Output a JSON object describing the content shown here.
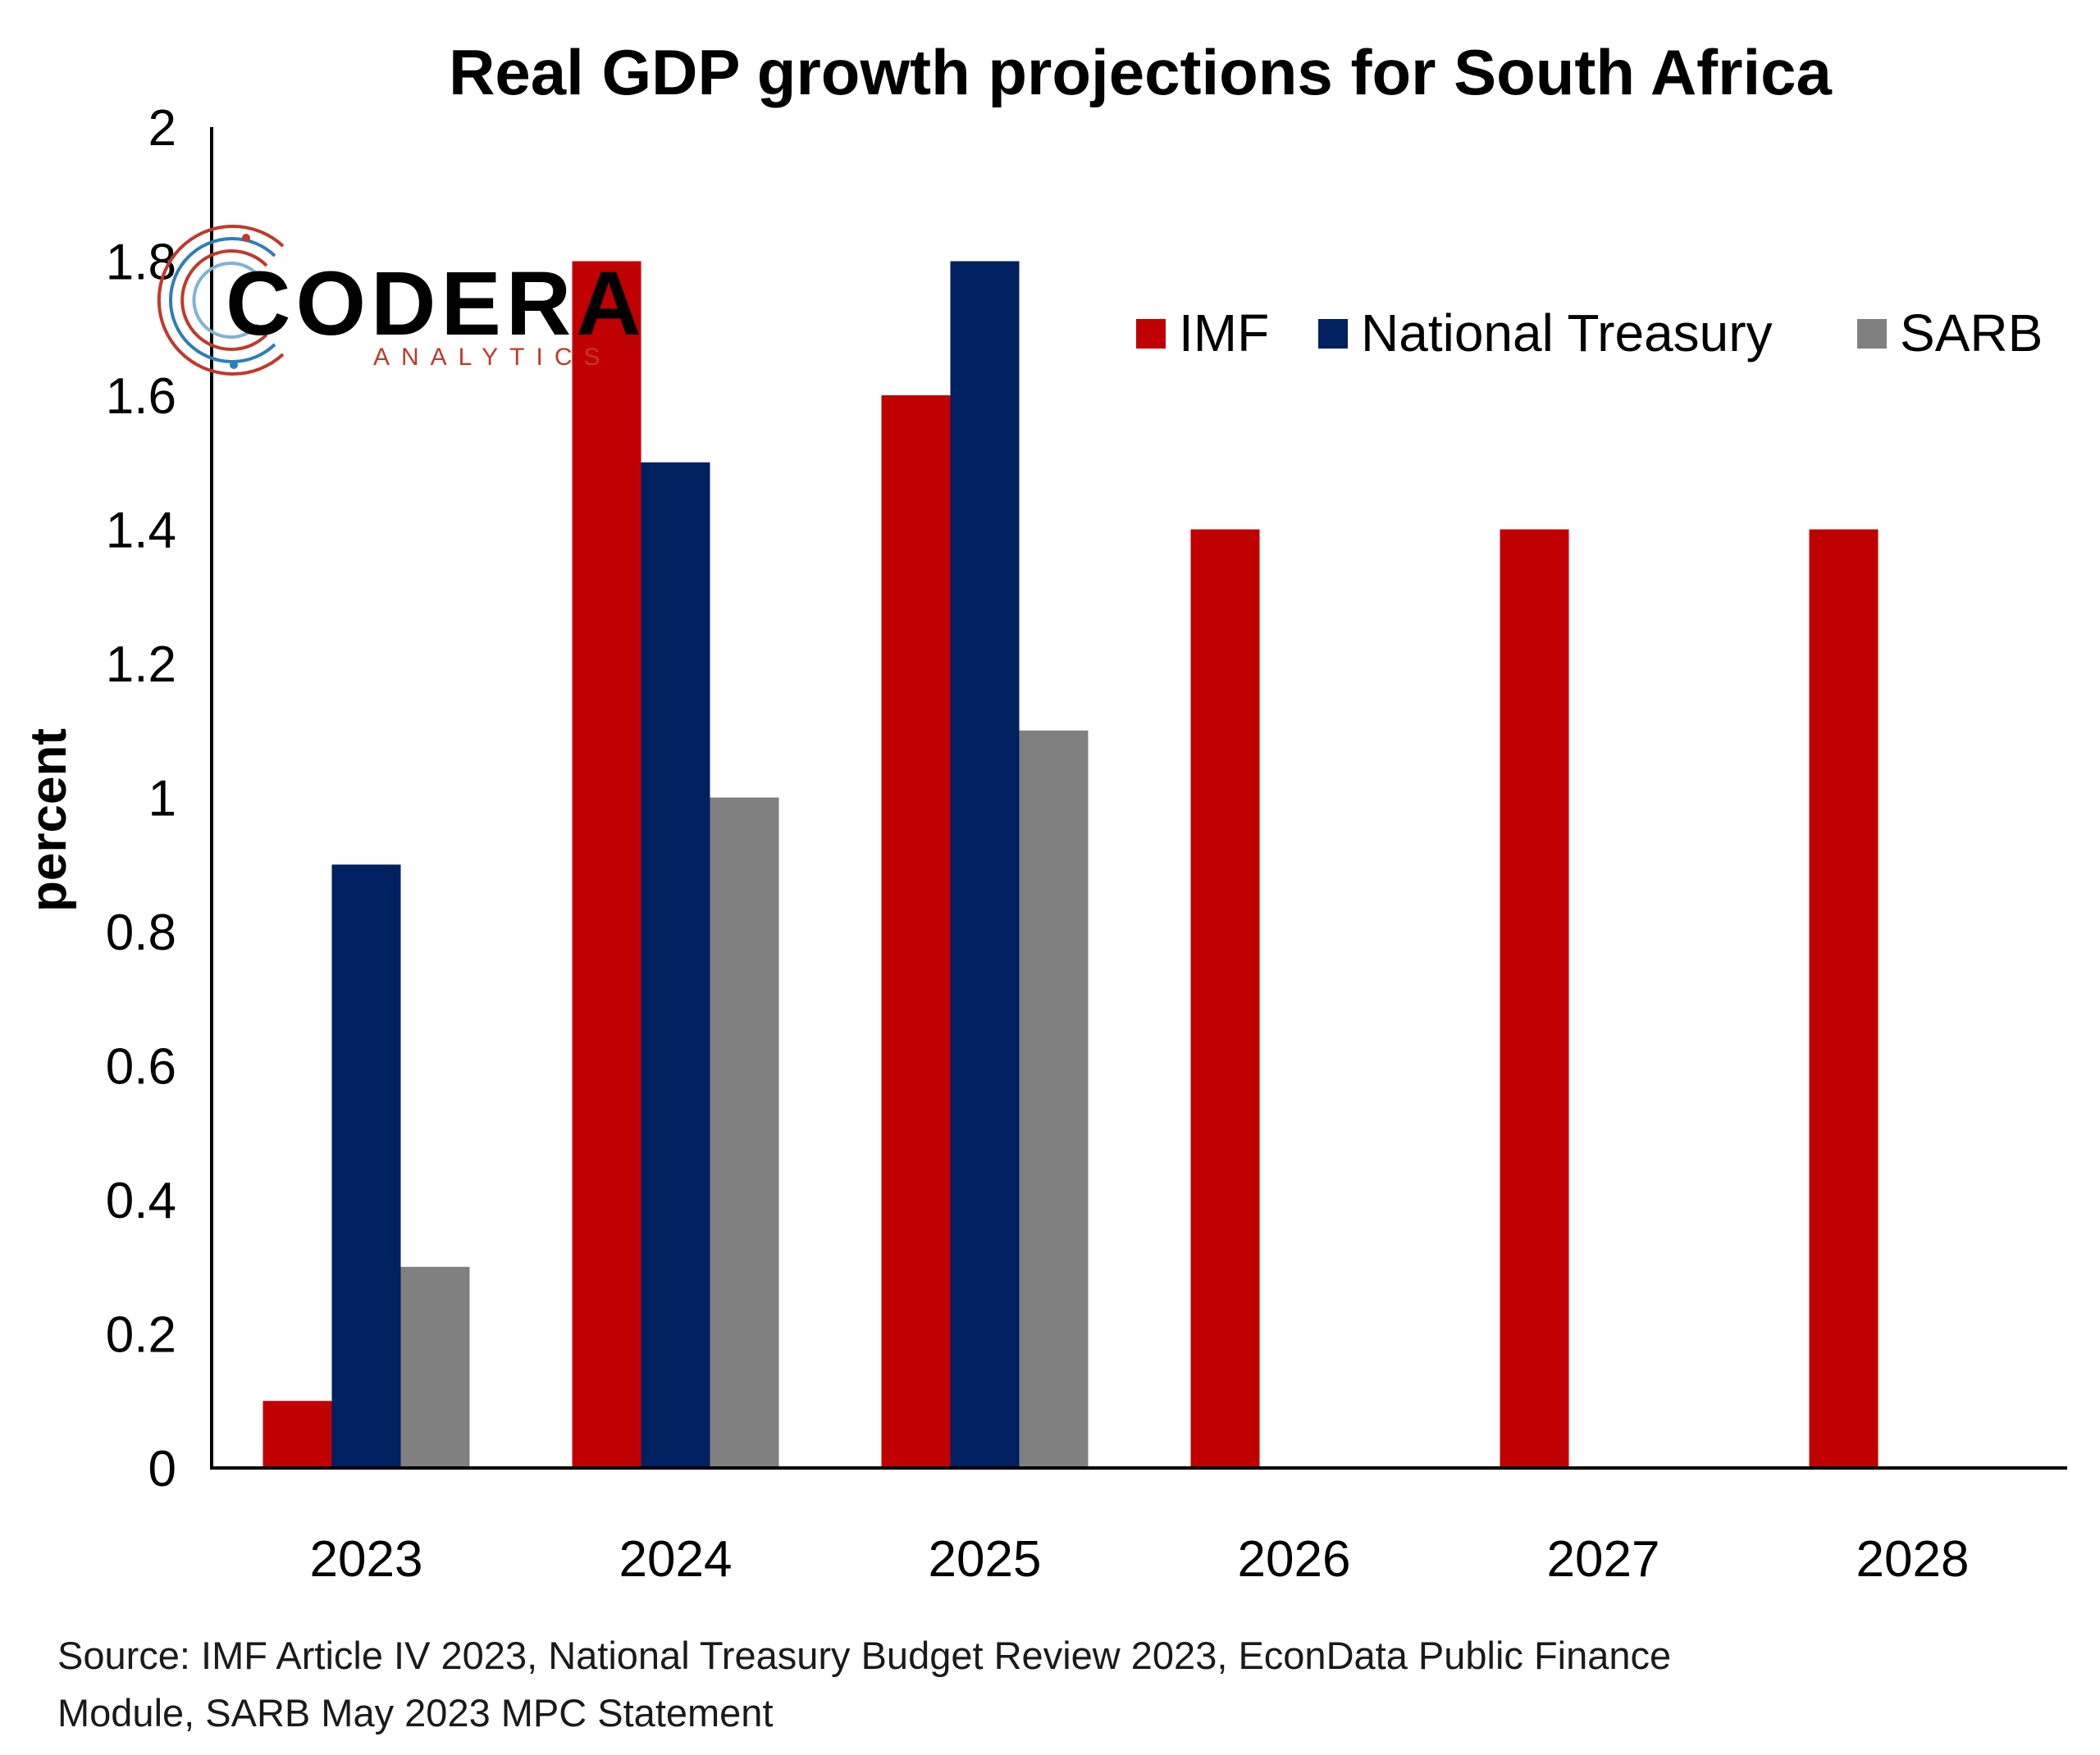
{
  "chart_data": {
    "type": "bar",
    "title": "Real GDP growth projections for South Africa",
    "ylabel": "percent",
    "xlabel": "",
    "ylim": [
      0,
      2
    ],
    "yticks": [
      "0",
      "0.2",
      "0.4",
      "0.6",
      "0.8",
      "1",
      "1.2",
      "1.4",
      "1.6",
      "1.8",
      "2"
    ],
    "categories": [
      "2023",
      "2024",
      "2025",
      "2026",
      "2027",
      "2028"
    ],
    "series": [
      {
        "name": "IMF",
        "color": "#c00000",
        "values": [
          0.1,
          1.8,
          1.6,
          1.4,
          1.4,
          1.4
        ]
      },
      {
        "name": "National Treasury",
        "color": "#002060",
        "values": [
          0.9,
          1.5,
          1.8,
          null,
          null,
          null
        ]
      },
      {
        "name": "SARB",
        "color": "#808080",
        "values": [
          0.3,
          1.0,
          1.1,
          null,
          null,
          null
        ]
      }
    ],
    "grid": false,
    "legend_position": "top-right"
  },
  "logo": {
    "name": "CODERA",
    "subtitle": "ANALYTICS"
  },
  "source": {
    "line1": "Source: IMF Article IV 2023, National Treasury Budget Review 2023, EconData Public Finance",
    "line2": "Module, SARB May 2023 MPC Statement"
  }
}
